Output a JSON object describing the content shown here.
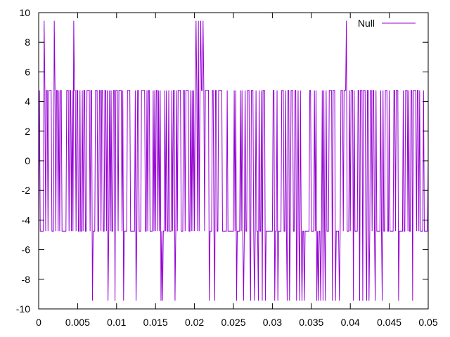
{
  "chart_data": {
    "type": "line",
    "title": "",
    "xlabel": "",
    "ylabel": "",
    "xlim": [
      0,
      0.05
    ],
    "ylim": [
      -10,
      10
    ],
    "x_ticks": [
      "0",
      "0.005",
      "0.01",
      "0.015",
      "0.02",
      "0.025",
      "0.03",
      "0.035",
      "0.04",
      "0.045",
      "0.05"
    ],
    "y_ticks": [
      "10",
      "8",
      "6",
      "4",
      "2",
      "0",
      "-2",
      "-4",
      "-6",
      "-8",
      "-10"
    ],
    "grid": false,
    "legend_position": "top-right",
    "series": [
      {
        "name": "Null",
        "color": "#9400D3",
        "description_levels": [
          4.75,
          -4.75
        ],
        "spike_high": 9.45,
        "spike_low": -9.45,
        "high_spikes_x": [
          0.0007,
          0.002,
          0.0045,
          0.0202,
          0.0205,
          0.0208,
          0.0211,
          0.0219,
          0.0395
        ],
        "low_spikes_x": [
          0.0069,
          0.0089,
          0.0098,
          0.0109,
          0.0125,
          0.0157,
          0.0159,
          0.0175,
          0.0219,
          0.0226,
          0.0254,
          0.0263,
          0.0272,
          0.0277,
          0.0282,
          0.0287,
          0.0291,
          0.0303,
          0.0307,
          0.0319,
          0.0322,
          0.0331,
          0.0335,
          0.0338,
          0.0341,
          0.0357,
          0.0359,
          0.0362,
          0.0365,
          0.0368,
          0.0377,
          0.0381,
          0.0386,
          0.0404,
          0.0412,
          0.0416,
          0.0421,
          0.0424,
          0.0432,
          0.0441,
          0.0462,
          0.048
        ],
        "end_value": 0
      }
    ]
  }
}
